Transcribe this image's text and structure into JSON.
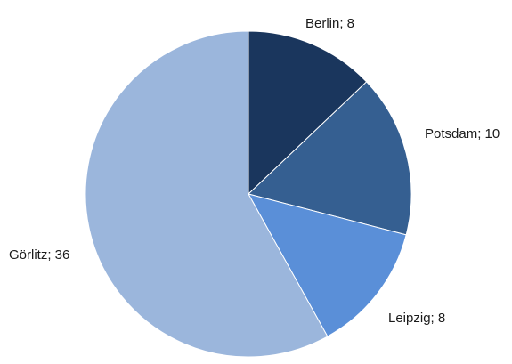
{
  "chart_data": {
    "type": "pie",
    "start_angle_deg": 0,
    "direction": "clockwise",
    "legend": "none",
    "slices": [
      {
        "category": "Berlin",
        "value": 8,
        "label": "Berlin; 8",
        "color": "#1a365d"
      },
      {
        "category": "Potsdam",
        "value": 10,
        "label": "Potsdam; 10",
        "color": "#355f91"
      },
      {
        "category": "Leipzig",
        "value": 8,
        "label": "Leipzig; 8",
        "color": "#5a8fd8"
      },
      {
        "category": "Görlitz",
        "value": 36,
        "label": "Görlitz; 36",
        "color": "#9bb6dc"
      }
    ]
  }
}
